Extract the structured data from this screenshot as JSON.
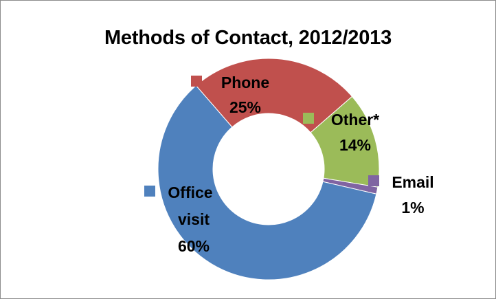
{
  "chart_data": {
    "type": "pie",
    "title": "Methods of Contact, 2012/2013",
    "categories": [
      "Phone",
      "Other*",
      "Email",
      "Office visit"
    ],
    "values": [
      25,
      14,
      1,
      60
    ],
    "value_labels": [
      "25%",
      "14%",
      "1%",
      "60%"
    ],
    "colors": [
      "#c0504d",
      "#9bbb59",
      "#8064a2",
      "#4f81bd"
    ],
    "donut": true
  }
}
